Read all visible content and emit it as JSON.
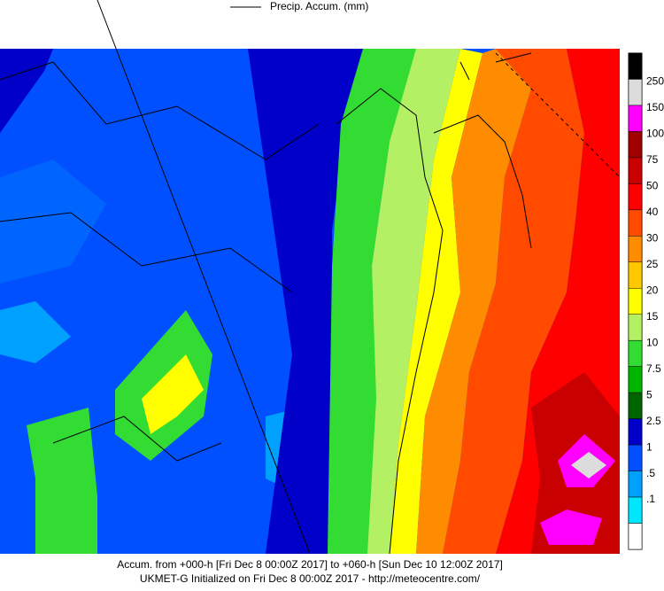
{
  "header": {
    "legend_label": "Precip. Accum. (mm)"
  },
  "colorbar": {
    "entries": [
      {
        "color": "#000000"
      },
      {
        "label": "250",
        "color": "#dcdcdc"
      },
      {
        "label": "150",
        "color": "#ff00ff"
      },
      {
        "label": "100",
        "color": "#a00000"
      },
      {
        "label": "75",
        "color": "#c80000"
      },
      {
        "label": "50",
        "color": "#ff0000"
      },
      {
        "label": "40",
        "color": "#ff4a00"
      },
      {
        "label": "30",
        "color": "#ff8c00"
      },
      {
        "label": "25",
        "color": "#ffc800"
      },
      {
        "label": "20",
        "color": "#ffff00"
      },
      {
        "label": "15",
        "color": "#b4f064"
      },
      {
        "label": "10",
        "color": "#32dc32"
      },
      {
        "label": "7.5",
        "color": "#00b400"
      },
      {
        "label": "5",
        "color": "#006400"
      },
      {
        "label": "2.5",
        "color": "#0000c8"
      },
      {
        "label": "1",
        "color": "#0050ff"
      },
      {
        "label": ".5",
        "color": "#00a0ff"
      },
      {
        "label": ".1",
        "color": "#00e6ff"
      },
      {
        "color": "#ffffff"
      }
    ]
  },
  "footer": {
    "line1": "Accum. from +000-h [Fri Dec 8 00:00Z 2017] to +060-h [Sun Dec 10 12:00Z 2017]",
    "line2": "UKMET-G Initialized on Fri Dec 8 00:00Z 2017 - http://meteocentre.com/"
  }
}
